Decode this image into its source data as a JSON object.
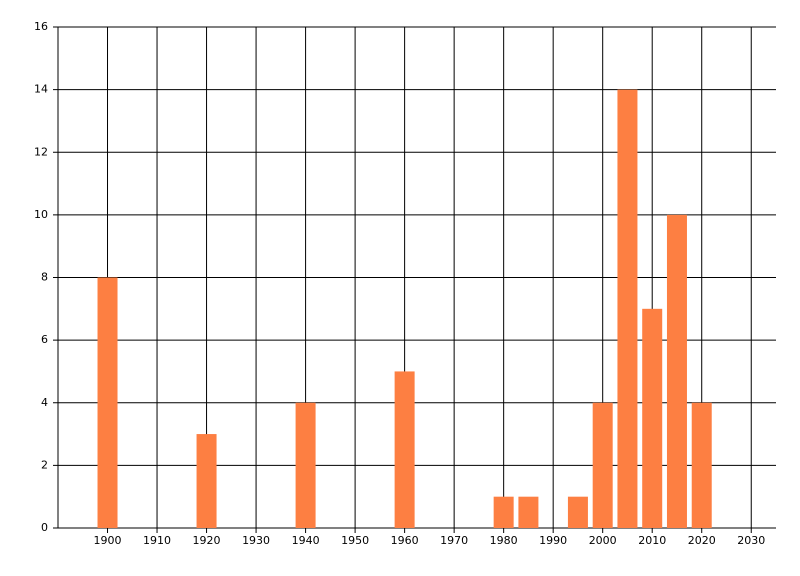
{
  "chart_data": {
    "type": "bar",
    "x": [
      1900,
      1920,
      1940,
      1960,
      1980,
      1985,
      1995,
      2000,
      2005,
      2010,
      2015,
      2020
    ],
    "values": [
      8,
      3,
      4,
      5,
      1,
      1,
      1,
      4,
      14,
      7,
      10,
      4
    ],
    "color": "#fd7f42",
    "xlim": [
      1890,
      2035
    ],
    "xticks": [
      1900,
      1910,
      1920,
      1930,
      1940,
      1950,
      1960,
      1970,
      1980,
      1990,
      2000,
      2010,
      2020,
      2030
    ],
    "ylim": [
      0,
      16
    ],
    "yticks": [
      0,
      2,
      4,
      6,
      8,
      10,
      12,
      14,
      16
    ],
    "grid": true
  }
}
